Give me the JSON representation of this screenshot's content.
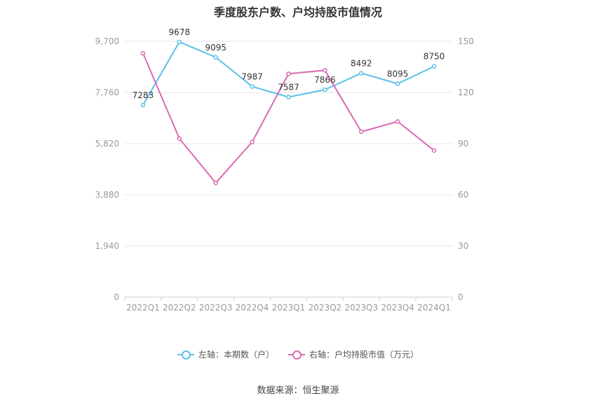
{
  "title": "季度股东户数、户均持股市值情况",
  "source": "数据来源：恒生聚源",
  "colors": {
    "left_series": "#5bc0eb",
    "right_series": "#d96bb0",
    "grid": "#e6e6ef",
    "axis": "#cccccc"
  },
  "legend": [
    {
      "label": "左轴：本期数（户）",
      "color": "#5bc0eb"
    },
    {
      "label": "右轴：户均持股市值（万元）",
      "color": "#d96bb0"
    }
  ],
  "chart_data": {
    "type": "line",
    "categories": [
      "2022Q1",
      "2022Q2",
      "2022Q3",
      "2022Q4",
      "2023Q1",
      "2023Q2",
      "2023Q3",
      "2023Q4",
      "2024Q1"
    ],
    "left_axis": {
      "min": 0,
      "max": 9700,
      "ticks": [
        0,
        1940,
        3880,
        5820,
        7760,
        9700
      ],
      "tick_labels": [
        "0",
        "1,940",
        "3,880",
        "5,820",
        "7,760",
        "9,700"
      ]
    },
    "right_axis": {
      "min": 0,
      "max": 150,
      "ticks": [
        0,
        30,
        60,
        90,
        120,
        150
      ],
      "tick_labels": [
        "0",
        "30",
        "60",
        "90",
        "120",
        "150"
      ]
    },
    "series": [
      {
        "name": "左轴：本期数（户）",
        "axis": "left",
        "values": [
          7283,
          9678,
          9095,
          7987,
          7587,
          7866,
          8492,
          8095,
          8750
        ],
        "labels": [
          "7283",
          "9678",
          "9095",
          "7987",
          "7587",
          "7866",
          "8492",
          "8095",
          "8750"
        ]
      },
      {
        "name": "右轴：户均持股市值（万元）",
        "axis": "right",
        "values": [
          143,
          93,
          67,
          91,
          131,
          133,
          97,
          103,
          86
        ]
      }
    ],
    "grid": true,
    "legend_position": "bottom"
  }
}
